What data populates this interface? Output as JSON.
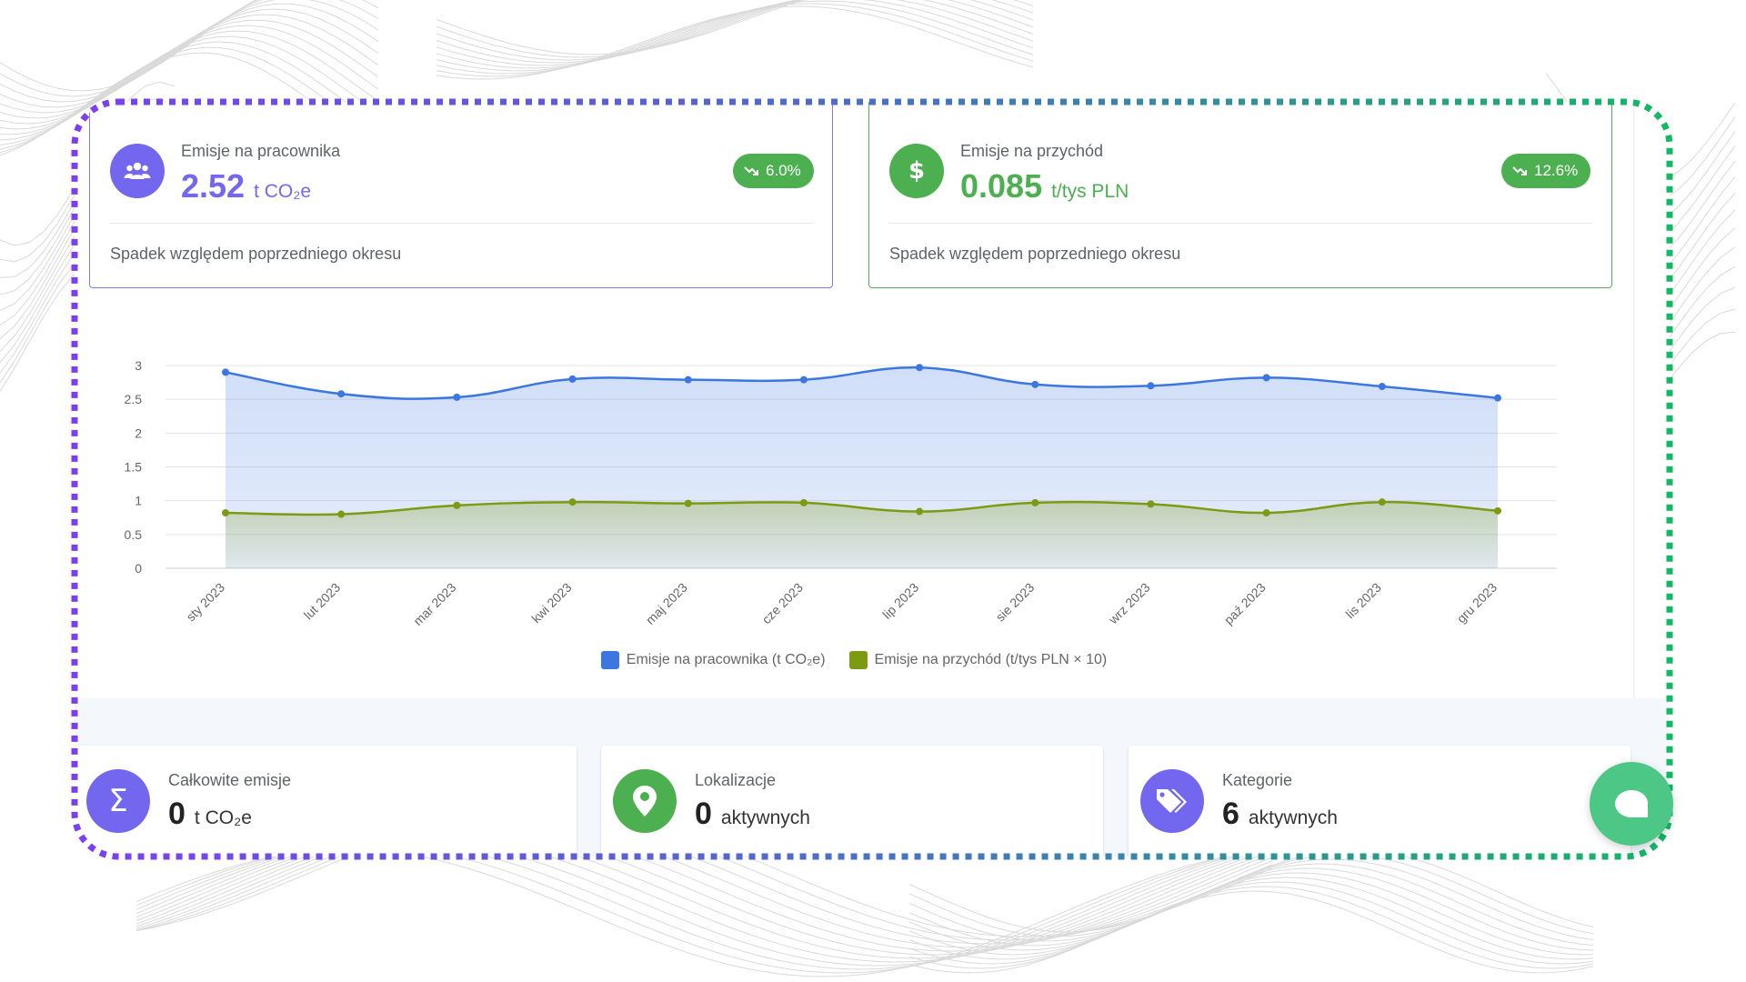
{
  "metrics": [
    {
      "label": "Emisje na pracownika",
      "value": "2.52",
      "unit": "t CO₂e",
      "badge": "6.0%",
      "subtext": "Spadek względem poprzedniego okresu",
      "icon": "users-icon",
      "color": "#7367f0"
    },
    {
      "label": "Emisje na przychód",
      "value": "0.085",
      "unit": "t/tys PLN",
      "badge": "12.6%",
      "subtext": "Spadek względem poprzedniego okresu",
      "icon": "dollar-icon",
      "color": "#4caf50"
    }
  ],
  "chart_data": {
    "type": "area",
    "categories": [
      "sty 2023",
      "lut 2023",
      "mar 2023",
      "kwi 2023",
      "maj 2023",
      "cze 2023",
      "lip 2023",
      "sie 2023",
      "wrz 2023",
      "paź 2023",
      "lis 2023",
      "gru 2023"
    ],
    "series": [
      {
        "name": "Emisje na pracownika (t CO₂e)",
        "color": "#3b76e1",
        "values": [
          2.9,
          2.58,
          2.53,
          2.8,
          2.79,
          2.79,
          2.97,
          2.72,
          2.7,
          2.82,
          2.69,
          2.52
        ]
      },
      {
        "name": "Emisje na przychód (t/tys PLN × 10)",
        "color": "#7c9a12",
        "values": [
          0.82,
          0.8,
          0.93,
          0.98,
          0.96,
          0.97,
          0.84,
          0.97,
          0.95,
          0.82,
          0.98,
          0.85
        ]
      }
    ],
    "yticks": [
      "0",
      "0.5",
      "1",
      "1.5",
      "2",
      "2.5",
      "3"
    ],
    "ylim": [
      0,
      3
    ],
    "legend": "bottom-center"
  },
  "stats": [
    {
      "label": "Całkowite emisje",
      "value": "0",
      "unit": "t CO₂e",
      "icon": "sigma-icon",
      "color": "#7367f0"
    },
    {
      "label": "Lokalizacje",
      "value": "0",
      "unit": "aktywnych",
      "icon": "map-pin-icon",
      "color": "#4caf50"
    },
    {
      "label": "Kategorie",
      "value": "6",
      "unit": "aktywnych",
      "icon": "tags-icon",
      "color": "#7367f0"
    }
  ],
  "chat": {
    "icon": "chat-icon",
    "color": "#4cc785"
  }
}
